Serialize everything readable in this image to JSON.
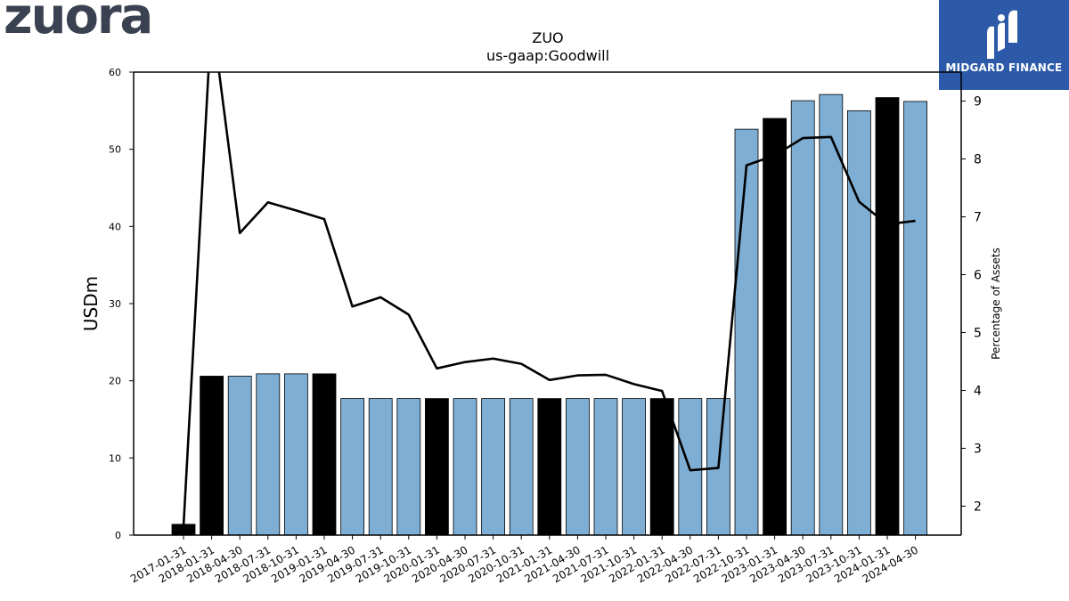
{
  "header": {
    "logo_text": "zuora",
    "brand_text": "MIDGARD FINANCE"
  },
  "colors": {
    "bar_light": "#7eaed4",
    "bar_dark": "#000000",
    "line": "#000000",
    "brand_bg": "#2c5aa8",
    "logo": "#3a4150"
  },
  "chart_data": {
    "type": "bar",
    "title": "ZUO",
    "subtitle": "us-gaap:Goodwill",
    "ylabel": "USDm",
    "y2label": "Percentage of Assets",
    "ylim": [
      0,
      60
    ],
    "y2lim": [
      1.5,
      9.5
    ],
    "yticks": [
      0,
      10,
      20,
      30,
      40,
      50,
      60
    ],
    "y2ticks": [
      2,
      3,
      4,
      5,
      6,
      7,
      8,
      9
    ],
    "categories": [
      "2017-01-31",
      "2018-01-31",
      "2018-04-30",
      "2018-07-31",
      "2018-10-31",
      "2019-01-31",
      "2019-04-30",
      "2019-07-31",
      "2019-10-31",
      "2020-01-31",
      "2020-04-30",
      "2020-07-31",
      "2020-10-31",
      "2021-01-31",
      "2021-04-30",
      "2021-07-31",
      "2021-10-31",
      "2022-01-31",
      "2022-04-30",
      "2022-07-31",
      "2022-10-31",
      "2023-01-31",
      "2023-04-30",
      "2023-07-31",
      "2023-10-31",
      "2024-01-31",
      "2024-04-30"
    ],
    "series": [
      {
        "kind": "bar",
        "values": [
          1.4,
          20.6,
          20.6,
          20.9,
          20.9,
          20.9,
          17.7,
          17.7,
          17.7,
          17.7,
          17.7,
          17.7,
          17.7,
          17.7,
          17.7,
          17.7,
          17.7,
          17.7,
          17.7,
          17.7,
          52.6,
          54.0,
          56.3,
          57.1,
          55.0,
          56.7,
          56.2
        ],
        "highlight": [
          true,
          true,
          false,
          false,
          false,
          true,
          false,
          false,
          false,
          true,
          false,
          false,
          false,
          true,
          false,
          false,
          false,
          true,
          false,
          false,
          false,
          true,
          false,
          false,
          false,
          true,
          false
        ]
      },
      {
        "kind": "line",
        "axis": "right",
        "values": [
          1.65,
          10.5,
          6.72,
          7.25,
          7.11,
          6.96,
          5.45,
          5.61,
          5.31,
          4.38,
          4.49,
          4.55,
          4.46,
          4.18,
          4.26,
          4.27,
          4.11,
          3.99,
          2.62,
          2.66,
          7.89,
          8.06,
          8.36,
          8.38,
          7.26,
          6.87,
          6.93
        ]
      }
    ]
  }
}
